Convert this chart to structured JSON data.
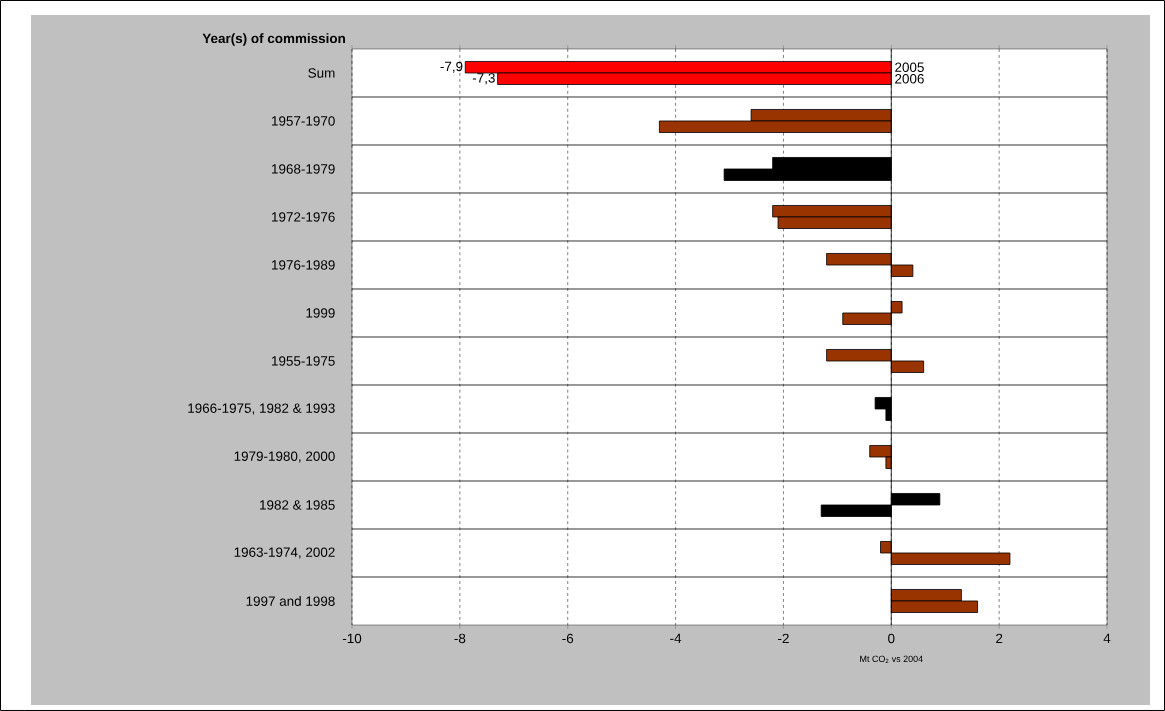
{
  "chart_data": {
    "type": "bar",
    "orientation": "horizontal",
    "ylabel": "Year(s) of commission",
    "xlabel": "Mt CO$_{2}$ vs 2004",
    "categories": [
      "Sum",
      "1957-1970",
      "1968-1979",
      "1972-1976",
      "1976-1989",
      "1999",
      "1955-1975",
      "1966-1975, 1982 & 1993",
      "1979-1980, 2000",
      "1982 & 1985",
      "1963-1974, 2002",
      "1997 and 1998"
    ],
    "series": [
      {
        "name": "2005",
        "colors": [
          "#ff0000",
          "#993300",
          "#000000",
          "#993300",
          "#993300",
          "#993300",
          "#993300",
          "#000000",
          "#993300",
          "#000000",
          "#993300",
          "#993300"
        ],
        "values": [
          -7.9,
          -2.6,
          -2.2,
          -2.2,
          -1.2,
          0.2,
          -1.2,
          -0.3,
          -0.4,
          0.9,
          -0.2,
          1.3
        ],
        "value_labels": [
          "-7,9",
          null,
          null,
          null,
          null,
          null,
          null,
          null,
          null,
          null,
          null,
          null
        ]
      },
      {
        "name": "2006",
        "colors": [
          "#ff0000",
          "#993300",
          "#000000",
          "#993300",
          "#993300",
          "#993300",
          "#993300",
          "#000000",
          "#993300",
          "#000000",
          "#993300",
          "#993300"
        ],
        "values": [
          -7.3,
          -4.3,
          -3.1,
          -2.1,
          0.4,
          -0.9,
          0.6,
          -0.1,
          -0.1,
          -1.3,
          2.2,
          1.6
        ],
        "value_labels": [
          "-7,3",
          null,
          null,
          null,
          null,
          null,
          null,
          null,
          null,
          null,
          null,
          null
        ]
      }
    ],
    "xlim": [
      -10,
      4
    ],
    "xticks": [
      -10,
      -8,
      -6,
      -4,
      -2,
      0,
      2,
      4
    ],
    "grid": "x"
  }
}
